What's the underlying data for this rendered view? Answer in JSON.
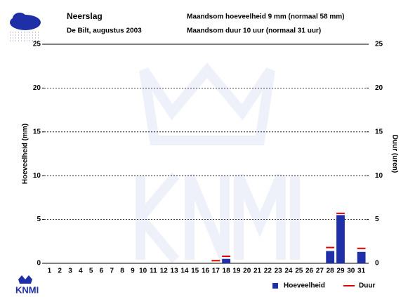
{
  "chart_data": {
    "type": "bar",
    "title": "Neerslag",
    "subtitle": "De Bilt, augustus 2003",
    "annotations": [
      "Maandsom hoeveelheid  9 mm (normaal 58 mm)",
      "Maandsom duur  10 uur (normaal 31 uur)"
    ],
    "logo": "KNMI",
    "ylabel": "Hoeveelheid (mm)",
    "y2label": "Duur (uren)",
    "categories": [
      1,
      2,
      3,
      4,
      5,
      6,
      7,
      8,
      9,
      10,
      11,
      12,
      13,
      14,
      15,
      16,
      17,
      18,
      19,
      20,
      21,
      22,
      23,
      24,
      25,
      26,
      27,
      28,
      29,
      30,
      31
    ],
    "series": [
      {
        "name": "Hoeveelheid",
        "color": "#1f2fa8",
        "values": [
          0,
          0,
          0,
          0,
          0,
          0,
          0,
          0,
          0,
          0,
          0,
          0,
          0,
          0,
          0,
          0,
          0,
          0.5,
          0,
          0,
          0,
          0,
          0,
          0,
          0,
          0,
          0,
          1.4,
          5.5,
          0,
          1.3
        ]
      },
      {
        "name": "Duur",
        "color": "#e00000",
        "axis": "y2",
        "values": [
          0,
          0,
          0,
          0,
          0,
          0,
          0,
          0,
          0,
          0,
          0,
          0,
          0,
          0,
          0,
          0,
          0.3,
          0.8,
          0,
          0,
          0,
          0,
          0,
          0,
          0,
          0,
          0,
          1.8,
          5.7,
          0,
          1.7
        ]
      }
    ],
    "ylim": [
      0,
      25
    ],
    "yticks": [
      0,
      5,
      10,
      15,
      20,
      25
    ],
    "y2lim": [
      0,
      25
    ],
    "y2ticks": [
      0,
      5,
      10,
      15,
      20,
      25
    ],
    "grid": true,
    "legend": "bottom-right"
  }
}
